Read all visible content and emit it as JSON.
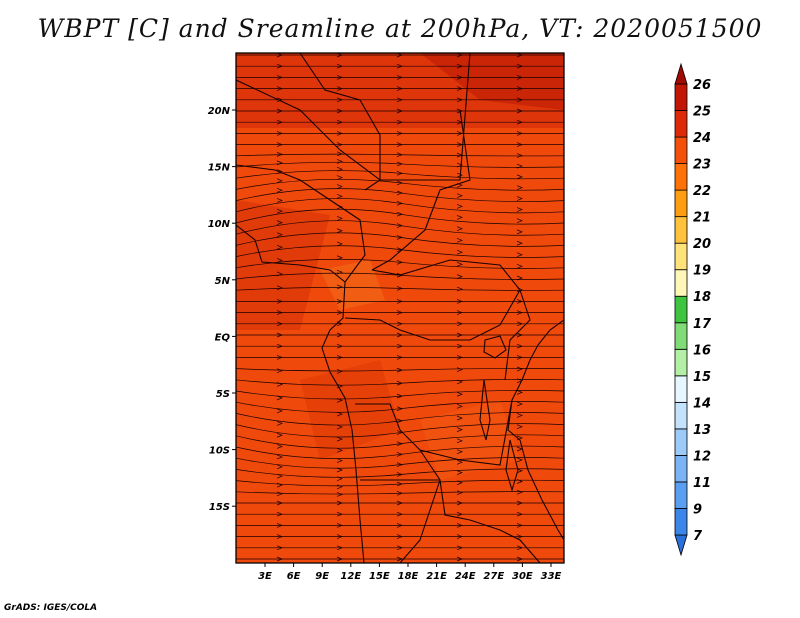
{
  "title": "WBPT [C] and Sreamline at 200hPa, VT: 2020051500",
  "credit": "GrADS: IGES/COLA",
  "map": {
    "lat_labels": [
      "20N",
      "15N",
      "10N",
      "5N",
      "EQ",
      "5S",
      "10S",
      "15S"
    ],
    "lon_labels": [
      "3E",
      "6E",
      "9E",
      "12E",
      "15E",
      "18E",
      "21E",
      "24E",
      "27E",
      "30E",
      "33E"
    ]
  },
  "colorbar": {
    "labels": [
      "7",
      "9",
      "11",
      "12",
      "13",
      "14",
      "15",
      "16",
      "17",
      "18",
      "19",
      "20",
      "21",
      "22",
      "23",
      "24",
      "25",
      "26"
    ],
    "colors": [
      "#2a6fdb",
      "#3b86e8",
      "#5a9ef2",
      "#7ab4f7",
      "#9ccbfa",
      "#c3e3fc",
      "#e6f7ff",
      "#b4efa6",
      "#7fdc76",
      "#3fc43f",
      "#fff7b8",
      "#ffe27a",
      "#ffc23d",
      "#ff9d12",
      "#ff7208",
      "#f5500a",
      "#dd2a06",
      "#c21604",
      "#a00a02"
    ]
  }
}
